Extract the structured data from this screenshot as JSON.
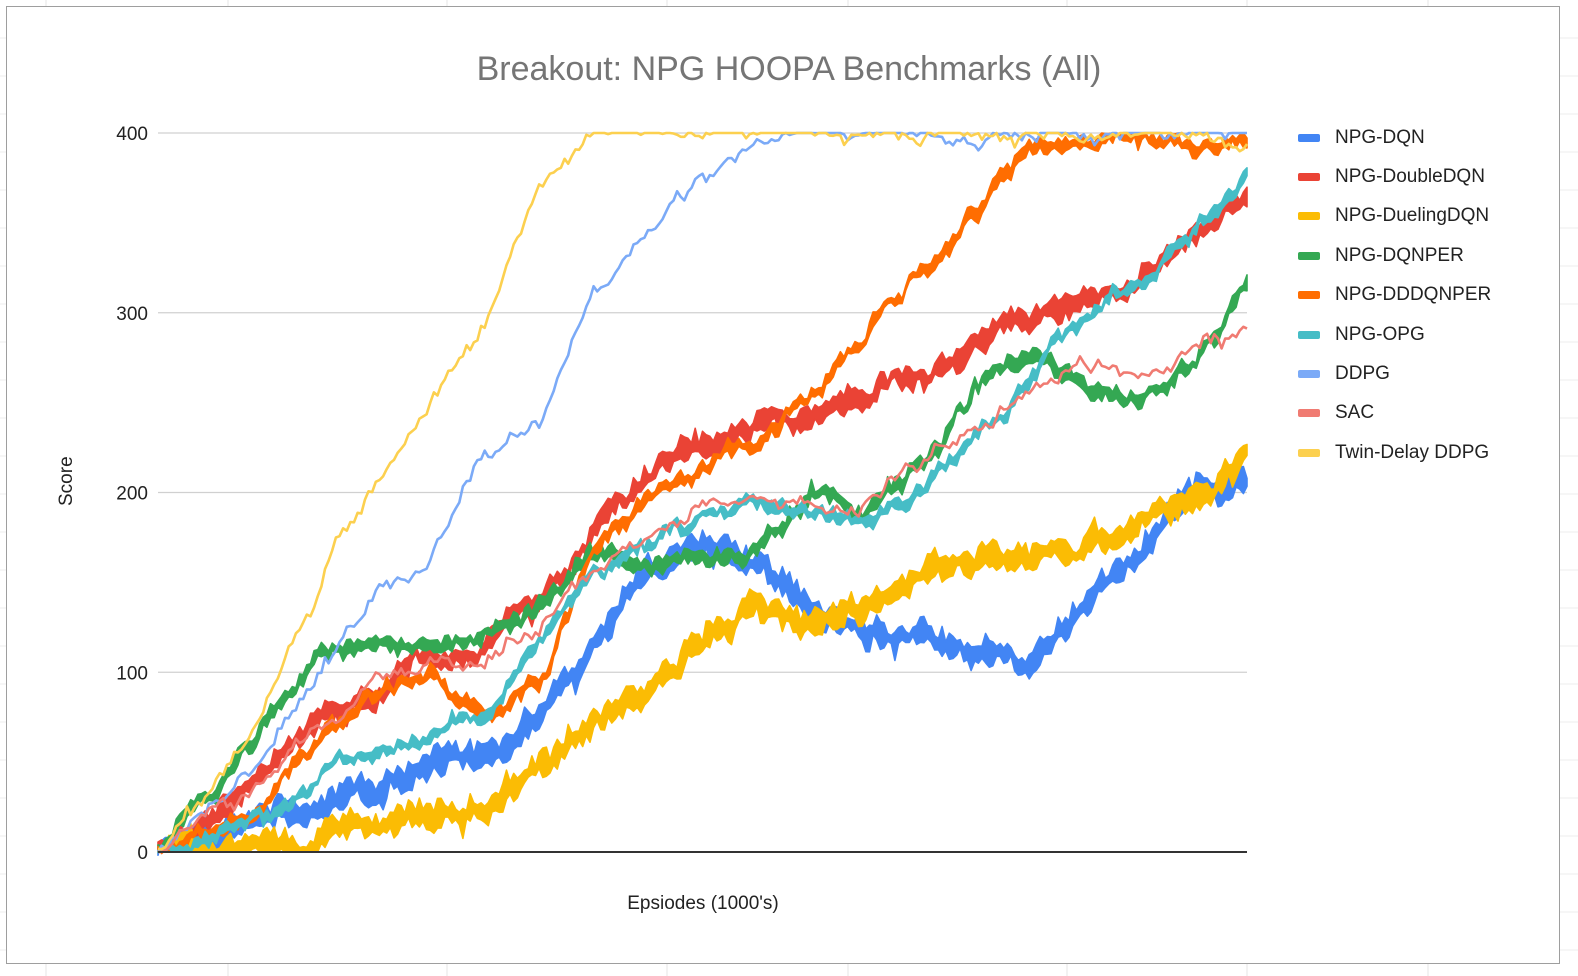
{
  "chart_data": {
    "type": "line",
    "title": "Breakout: NPG HOOPA Benchmarks (All)",
    "xlabel": "Epsiodes (1000's)",
    "ylabel": "Score",
    "ylim": [
      0,
      400
    ],
    "yticks": [
      0,
      100,
      200,
      300,
      400
    ],
    "grid": true,
    "legend_position": "right",
    "x": [
      0,
      5,
      10,
      15,
      20,
      25,
      30,
      35,
      40,
      45,
      50,
      55,
      60,
      65,
      70,
      75,
      80,
      85,
      90,
      95,
      100
    ],
    "series": [
      {
        "name": "NPG-DQN",
        "color": "#4285f4",
        "band": 14,
        "values": [
          0,
          5,
          15,
          25,
          35,
          45,
          55,
          75,
          110,
          160,
          175,
          165,
          140,
          120,
          125,
          110,
          100,
          140,
          165,
          195,
          210
        ]
      },
      {
        "name": "NPG-DoubleDQN",
        "color": "#ea4335",
        "band": 12,
        "values": [
          0,
          20,
          45,
          75,
          90,
          110,
          110,
          140,
          175,
          205,
          225,
          235,
          240,
          255,
          265,
          285,
          295,
          310,
          320,
          340,
          360
        ]
      },
      {
        "name": "NPG-DuelingDQN",
        "color": "#fbbc04",
        "band": 14,
        "values": [
          0,
          2,
          5,
          10,
          15,
          20,
          25,
          55,
          70,
          85,
          120,
          140,
          125,
          135,
          150,
          160,
          165,
          170,
          185,
          200,
          215
        ]
      },
      {
        "name": "NPG-DQNPER",
        "color": "#34a853",
        "band": 8,
        "values": [
          0,
          35,
          70,
          110,
          115,
          112,
          118,
          135,
          165,
          160,
          165,
          170,
          200,
          190,
          210,
          260,
          275,
          265,
          250,
          265,
          310
        ]
      },
      {
        "name": "NPG-DDDQNPER",
        "color": "#ff6d01",
        "band": 7,
        "values": [
          0,
          10,
          30,
          65,
          85,
          95,
          75,
          95,
          165,
          200,
          220,
          230,
          255,
          290,
          325,
          360,
          392,
          395,
          395,
          396,
          397
        ]
      },
      {
        "name": "NPG-OPG",
        "color": "#46bdc6",
        "band": 6,
        "values": [
          0,
          10,
          20,
          40,
          55,
          65,
          75,
          115,
          150,
          170,
          190,
          195,
          185,
          185,
          200,
          235,
          265,
          295,
          320,
          345,
          375
        ]
      },
      {
        "name": "DDPG",
        "color": "#7baaf7",
        "band": 3,
        "values": [
          0,
          25,
          55,
          100,
          145,
          165,
          220,
          240,
          315,
          345,
          372,
          390,
          398,
          400,
          400,
          400,
          400,
          400,
          400,
          400,
          400
        ]
      },
      {
        "name": "SAC",
        "color": "#f07b72",
        "band": 3,
        "values": [
          0,
          25,
          45,
          70,
          95,
          105,
          110,
          130,
          160,
          175,
          190,
          200,
          190,
          195,
          215,
          240,
          260,
          270,
          265,
          280,
          290
        ]
      },
      {
        "name": "Twin-Delay DDPG",
        "color": "#fcd04f",
        "band": 3,
        "values": [
          0,
          35,
          85,
          150,
          210,
          250,
          295,
          370,
          398,
          399,
          400,
          400,
          400,
          400,
          400,
          400,
          400,
          400,
          400,
          398,
          395
        ]
      }
    ]
  }
}
